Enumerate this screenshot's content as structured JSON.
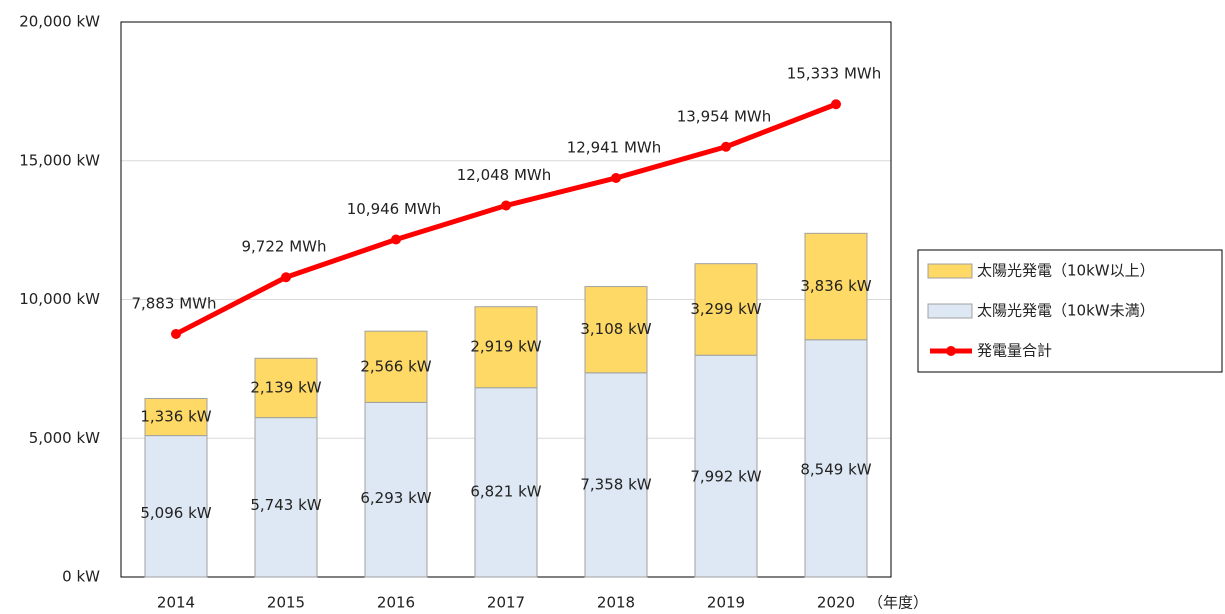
{
  "chart_data": {
    "type": "bar",
    "categories": [
      "2014",
      "2015",
      "2016",
      "2017",
      "2018",
      "2019",
      "2020"
    ],
    "x_label": "（年度）",
    "series": [
      {
        "name": "太陽光発電（10kW未満）",
        "type": "bar",
        "color": "#dde8f4",
        "values": [
          5096,
          5743,
          6293,
          6821,
          7358,
          7992,
          8549
        ],
        "value_labels": [
          "5,096 kW",
          "5,743 kW",
          "6,293 kW",
          "6,821 kW",
          "7,358 kW",
          "7,992 kW",
          "8,549 kW"
        ]
      },
      {
        "name": "太陽光発電（10kW以上）",
        "type": "bar",
        "color": "#ffd966",
        "values": [
          1336,
          2139,
          2566,
          2919,
          3108,
          3299,
          3836
        ],
        "value_labels": [
          "1,336 kW",
          "2,139 kW",
          "2,566 kW",
          "2,919 kW",
          "3,108 kW",
          "3,299 kW",
          "3,836 kW"
        ]
      },
      {
        "name": "発電量合計",
        "type": "line",
        "axis": "y2",
        "color": "#ff0000",
        "values": [
          7883,
          9722,
          10946,
          12048,
          12941,
          13954,
          15333
        ],
        "value_labels": [
          "7,883 MWh",
          "9,722 MWh",
          "10,946 MWh",
          "12,048 MWh",
          "12,941 MWh",
          "13,954 MWh",
          "15,333 MWh"
        ]
      }
    ],
    "stacked": true,
    "ylim": [
      0,
      20000
    ],
    "yticks": [
      {
        "value": 0,
        "label": "0 kW"
      },
      {
        "value": 5000,
        "label": "5,000 kW"
      },
      {
        "value": 10000,
        "label": "10,000 kW"
      },
      {
        "value": 15000,
        "label": "15,000 kW"
      },
      {
        "value": 20000,
        "label": "20,000 kW"
      }
    ],
    "y2lim": [
      0,
      18000
    ],
    "grid": true,
    "legend": "right"
  }
}
